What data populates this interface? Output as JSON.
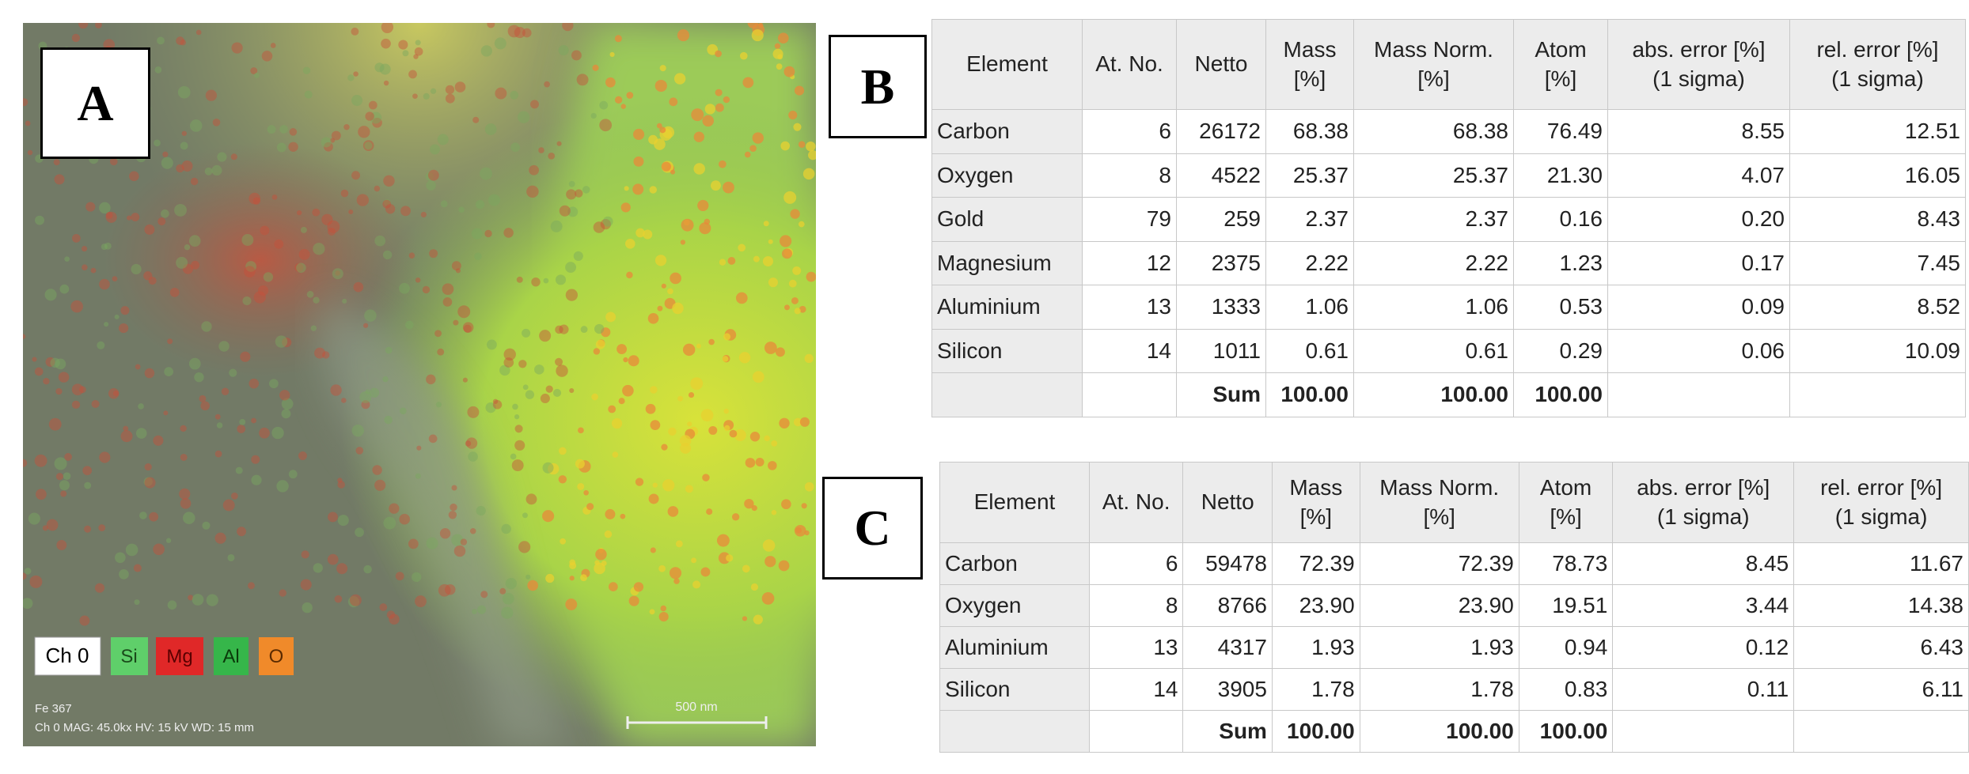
{
  "panel_a": {
    "label": "A",
    "legend": [
      "Ch 0",
      "Si",
      "Mg",
      "Al",
      "O"
    ],
    "info_lines": [
      "Fe 367",
      "Ch 0   MAG: 45.0kx   HV: 15 kV   WD: 15 mm"
    ],
    "scale_bar": "500 nm"
  },
  "tables": [
    {
      "label": "B",
      "header": [
        [
          "Element"
        ],
        [
          "At. No."
        ],
        [
          "Netto"
        ],
        [
          "Mass",
          "[%]"
        ],
        [
          "Mass Norm.",
          "[%]"
        ],
        [
          "Atom",
          "[%]"
        ],
        [
          "abs. error [%]",
          "(1 sigma)"
        ],
        [
          "rel. error [%]",
          "(1 sigma)"
        ]
      ],
      "rows": [
        [
          "Carbon",
          "6",
          "26172",
          "68.38",
          "68.38",
          "76.49",
          "8.55",
          "12.51"
        ],
        [
          "Oxygen",
          "8",
          "4522",
          "25.37",
          "25.37",
          "21.30",
          "4.07",
          "16.05"
        ],
        [
          "Gold",
          "79",
          "259",
          "2.37",
          "2.37",
          "0.16",
          "0.20",
          "8.43"
        ],
        [
          "Magnesium",
          "12",
          "2375",
          "2.22",
          "2.22",
          "1.23",
          "0.17",
          "7.45"
        ],
        [
          "Aluminium",
          "13",
          "1333",
          "1.06",
          "1.06",
          "0.53",
          "0.09",
          "8.52"
        ],
        [
          "Silicon",
          "14",
          "1011",
          "0.61",
          "0.61",
          "0.29",
          "0.06",
          "10.09"
        ]
      ],
      "sum": [
        "Sum",
        "100.00",
        "100.00",
        "100.00"
      ]
    },
    {
      "label": "C",
      "header": [
        [
          "Element"
        ],
        [
          "At. No."
        ],
        [
          "Netto"
        ],
        [
          "Mass",
          "[%]"
        ],
        [
          "Mass Norm.",
          "[%]"
        ],
        [
          "Atom",
          "[%]"
        ],
        [
          "abs. error [%]",
          "(1 sigma)"
        ],
        [
          "rel. error [%]",
          "(1 sigma)"
        ]
      ],
      "rows": [
        [
          "Carbon",
          "6",
          "59478",
          "72.39",
          "72.39",
          "78.73",
          "8.45",
          "11.67"
        ],
        [
          "Oxygen",
          "8",
          "8766",
          "23.90",
          "23.90",
          "19.51",
          "3.44",
          "14.38"
        ],
        [
          "Aluminium",
          "13",
          "4317",
          "1.93",
          "1.93",
          "0.94",
          "0.12",
          "6.43"
        ],
        [
          "Silicon",
          "14",
          "3905",
          "1.78",
          "1.78",
          "0.83",
          "0.11",
          "6.11"
        ]
      ],
      "sum": [
        "Sum",
        "100.00",
        "100.00",
        "100.00"
      ]
    }
  ]
}
